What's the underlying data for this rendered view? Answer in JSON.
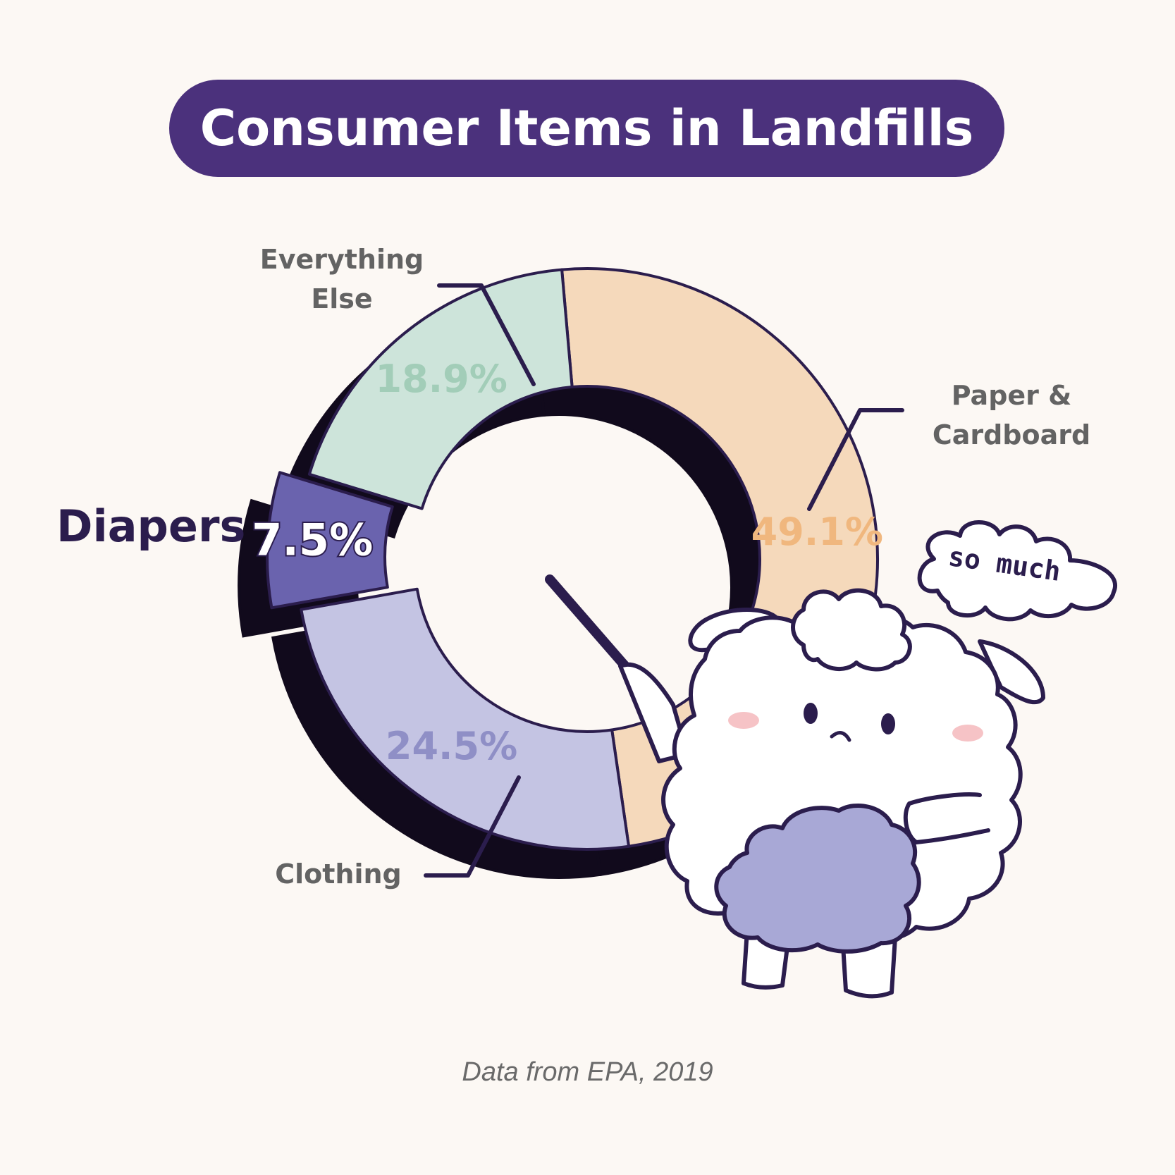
{
  "title": "Consumer Items in Landfills",
  "source_note": "Data from EPA, 2019",
  "speech_bubble": "so much",
  "chart_data": {
    "type": "pie",
    "variant": "donut, exploded slice",
    "title": "Consumer Items in Landfills",
    "slices": [
      {
        "label": "Paper & Cardboard",
        "value": 49.1,
        "value_label": "49.1%",
        "color": "#f5d9bb",
        "text_color": "#f0b77e"
      },
      {
        "label": "Clothing",
        "value": 24.5,
        "value_label": "24.5%",
        "color": "#c4c4e3",
        "text_color": "#8f8fc6"
      },
      {
        "label": "Diapers",
        "value": 7.5,
        "value_label": "7.5%",
        "color": "#6a63ae",
        "text_color": "#ffffff",
        "exploded": true
      },
      {
        "label": "Everything Else",
        "value": 18.9,
        "value_label": "18.9%",
        "color": "#cde4da",
        "text_color": "#a2cdb8"
      }
    ]
  },
  "labels": {
    "everything_else_line1": "Everything",
    "everything_else_line2": "Else",
    "paper_line1": "Paper &",
    "paper_line2": "Cardboard",
    "clothing": "Clothing",
    "diapers": "Diapers"
  },
  "colors": {
    "title_bg": "#4b317c",
    "background": "#fcf8f4",
    "outline": "#2b1d4d",
    "shadow": "#110a1c"
  }
}
